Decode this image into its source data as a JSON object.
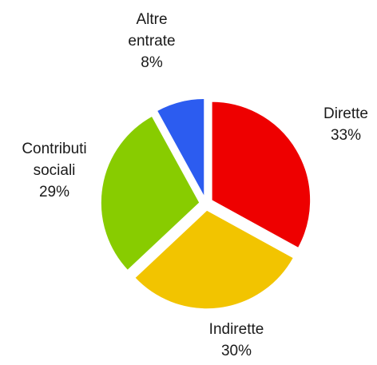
{
  "chart_data": {
    "type": "pie",
    "slices": [
      {
        "label_lines": [
          "Dirette"
        ],
        "value_label": "33%",
        "value": 33,
        "color": "#ee0000"
      },
      {
        "label_lines": [
          "Indirette"
        ],
        "value_label": "30%",
        "value": 30,
        "color": "#f2c400"
      },
      {
        "label_lines": [
          "Contributi",
          "sociali"
        ],
        "value_label": "29%",
        "value": 29,
        "color": "#88cc00"
      },
      {
        "label_lines": [
          "Altre",
          "entrate"
        ],
        "value_label": "8%",
        "value": 8,
        "color": "#2c5cf0"
      }
    ],
    "exploded": true,
    "start_angle_deg": 0,
    "direction": "clockwise",
    "legend": "none"
  }
}
